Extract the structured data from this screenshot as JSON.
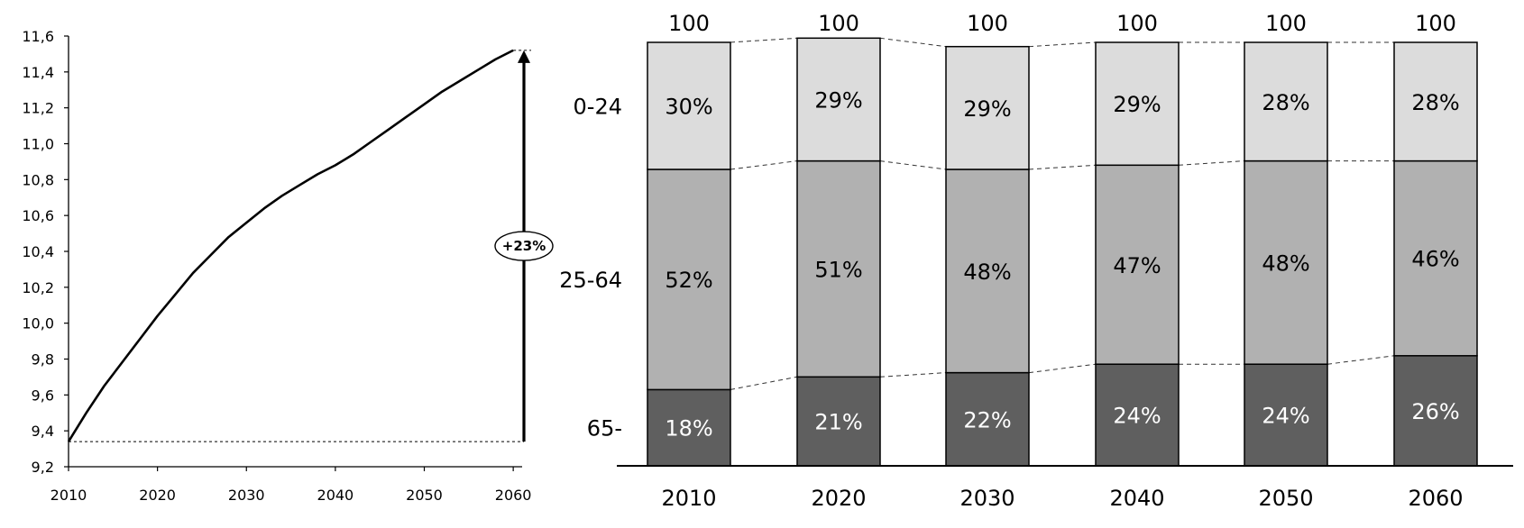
{
  "chart_data": [
    {
      "type": "line",
      "x": [
        2010,
        2012,
        2014,
        2016,
        2018,
        2020,
        2022,
        2024,
        2026,
        2028,
        2030,
        2032,
        2034,
        2036,
        2038,
        2040,
        2042,
        2044,
        2046,
        2048,
        2050,
        2052,
        2054,
        2056,
        2058,
        2060
      ],
      "series": [
        {
          "values": [
            9.34,
            9.5,
            9.65,
            9.78,
            9.91,
            10.04,
            10.16,
            10.28,
            10.38,
            10.48,
            10.56,
            10.64,
            10.71,
            10.77,
            10.83,
            10.88,
            10.94,
            11.01,
            11.08,
            11.15,
            11.22,
            11.29,
            11.35,
            11.41,
            11.47,
            11.52
          ]
        }
      ],
      "xlim": [
        2010,
        2061
      ],
      "ylim": [
        9.2,
        11.6
      ],
      "x_ticks": [
        "2010",
        "2020",
        "2030",
        "2040",
        "2050",
        "2060"
      ],
      "y_ticks": [
        "9,2",
        "9,4",
        "9,6",
        "9,8",
        "10,0",
        "10,2",
        "10,4",
        "10,6",
        "10,8",
        "11,0",
        "11,2",
        "11,4",
        "11,6"
      ],
      "annotation": {
        "label": "+23%",
        "from": 9.34,
        "to": 11.52
      },
      "grid": false,
      "legend": "none"
    },
    {
      "type": "bar",
      "stacked": true,
      "categories": [
        "2010",
        "2020",
        "2030",
        "2040",
        "2050",
        "2060"
      ],
      "totals": [
        "100",
        "100",
        "100",
        "100",
        "100",
        "100"
      ],
      "series": [
        {
          "name": "65-",
          "values": [
            18,
            21,
            22,
            24,
            24,
            26
          ],
          "labels": [
            "18%",
            "21%",
            "22%",
            "24%",
            "24%",
            "26%"
          ],
          "color": "#5f5f5f",
          "text_color": "#ffffff"
        },
        {
          "name": "25-64",
          "values": [
            52,
            51,
            48,
            47,
            48,
            46
          ],
          "labels": [
            "52%",
            "51%",
            "48%",
            "47%",
            "48%",
            "46%"
          ],
          "color": "#b1b1b1",
          "text_color": "#000000"
        },
        {
          "name": "0-24",
          "values": [
            30,
            29,
            29,
            29,
            28,
            28
          ],
          "labels": [
            "30%",
            "29%",
            "29%",
            "29%",
            "28%",
            "28%"
          ],
          "color": "#dcdcdc",
          "text_color": "#000000"
        }
      ],
      "ylim": [
        0,
        100
      ],
      "legend": "left"
    }
  ]
}
